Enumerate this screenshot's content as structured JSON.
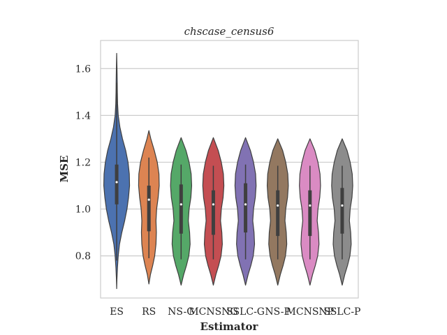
{
  "chart_data": {
    "type": "violin",
    "title": "chscase_census6",
    "xlabel": "Estimator",
    "ylabel": "MSE",
    "ylim": [
      0.62,
      1.72
    ],
    "yticks": [
      0.8,
      1.0,
      1.2,
      1.4,
      1.6
    ],
    "ytick_labels": [
      "0.8",
      "1.0",
      "1.2",
      "1.4",
      "1.6"
    ],
    "grid": true,
    "categories": [
      "ES",
      "RS",
      "NS-G",
      "MCNSNG",
      "SSLC-G",
      "NS-P",
      "MCNSNP",
      "SSLC-P"
    ],
    "series": [
      {
        "name": "ES",
        "color": "#4c72b0",
        "violin_range": [
          0.66,
          1.665
        ],
        "whisker": [
          0.78,
          1.54
        ],
        "q1": 1.02,
        "median": 1.115,
        "q3": 1.19,
        "profile": [
          [
            0.66,
            0.0
          ],
          [
            0.7,
            0.02
          ],
          [
            0.75,
            0.06
          ],
          [
            0.8,
            0.12
          ],
          [
            0.85,
            0.22
          ],
          [
            0.9,
            0.4
          ],
          [
            0.95,
            0.62
          ],
          [
            1.0,
            0.8
          ],
          [
            1.05,
            0.92
          ],
          [
            1.1,
            1.0
          ],
          [
            1.15,
            0.98
          ],
          [
            1.2,
            0.88
          ],
          [
            1.25,
            0.7
          ],
          [
            1.3,
            0.45
          ],
          [
            1.35,
            0.25
          ],
          [
            1.4,
            0.12
          ],
          [
            1.45,
            0.07
          ],
          [
            1.5,
            0.05
          ],
          [
            1.55,
            0.04
          ],
          [
            1.6,
            0.025
          ],
          [
            1.665,
            0.0
          ]
        ]
      },
      {
        "name": "RS",
        "color": "#dd8452",
        "violin_range": [
          0.68,
          1.335
        ],
        "whisker": [
          0.79,
          1.22
        ],
        "q1": 0.905,
        "median": 1.04,
        "q3": 1.1,
        "profile": [
          [
            0.68,
            0.0
          ],
          [
            0.72,
            0.12
          ],
          [
            0.76,
            0.3
          ],
          [
            0.8,
            0.45
          ],
          [
            0.85,
            0.55
          ],
          [
            0.9,
            0.58
          ],
          [
            0.95,
            0.55
          ],
          [
            1.0,
            0.6
          ],
          [
            1.05,
            0.72
          ],
          [
            1.1,
            0.8
          ],
          [
            1.15,
            0.78
          ],
          [
            1.2,
            0.65
          ],
          [
            1.25,
            0.42
          ],
          [
            1.3,
            0.15
          ],
          [
            1.335,
            0.0
          ]
        ]
      },
      {
        "name": "NS-G",
        "color": "#55a868",
        "violin_range": [
          0.675,
          1.305
        ],
        "whisker": [
          0.785,
          1.19
        ],
        "q1": 0.895,
        "median": 1.02,
        "q3": 1.105,
        "profile": [
          [
            0.675,
            0.0
          ],
          [
            0.72,
            0.2
          ],
          [
            0.76,
            0.42
          ],
          [
            0.8,
            0.6
          ],
          [
            0.85,
            0.7
          ],
          [
            0.9,
            0.66
          ],
          [
            0.95,
            0.56
          ],
          [
            1.0,
            0.62
          ],
          [
            1.05,
            0.76
          ],
          [
            1.1,
            0.82
          ],
          [
            1.15,
            0.78
          ],
          [
            1.2,
            0.62
          ],
          [
            1.25,
            0.38
          ],
          [
            1.305,
            0.0
          ]
        ]
      },
      {
        "name": "MCNSNG",
        "color": "#c44e52",
        "violin_range": [
          0.675,
          1.305
        ],
        "whisker": [
          0.785,
          1.185
        ],
        "q1": 0.89,
        "median": 1.02,
        "q3": 1.08,
        "profile": [
          [
            0.675,
            0.0
          ],
          [
            0.72,
            0.2
          ],
          [
            0.76,
            0.42
          ],
          [
            0.8,
            0.6
          ],
          [
            0.85,
            0.7
          ],
          [
            0.9,
            0.66
          ],
          [
            0.95,
            0.56
          ],
          [
            1.0,
            0.62
          ],
          [
            1.05,
            0.76
          ],
          [
            1.1,
            0.82
          ],
          [
            1.15,
            0.78
          ],
          [
            1.2,
            0.62
          ],
          [
            1.25,
            0.38
          ],
          [
            1.305,
            0.0
          ]
        ]
      },
      {
        "name": "SSLC-G",
        "color": "#8172b3",
        "violin_range": [
          0.675,
          1.305
        ],
        "whisker": [
          0.785,
          1.19
        ],
        "q1": 0.9,
        "median": 1.02,
        "q3": 1.11,
        "profile": [
          [
            0.675,
            0.0
          ],
          [
            0.72,
            0.2
          ],
          [
            0.76,
            0.42
          ],
          [
            0.8,
            0.6
          ],
          [
            0.85,
            0.7
          ],
          [
            0.9,
            0.66
          ],
          [
            0.95,
            0.56
          ],
          [
            1.0,
            0.62
          ],
          [
            1.05,
            0.76
          ],
          [
            1.1,
            0.82
          ],
          [
            1.15,
            0.78
          ],
          [
            1.2,
            0.62
          ],
          [
            1.25,
            0.38
          ],
          [
            1.305,
            0.0
          ]
        ]
      },
      {
        "name": "NS-P",
        "color": "#937860",
        "violin_range": [
          0.675,
          1.3
        ],
        "whisker": [
          0.785,
          1.185
        ],
        "q1": 0.885,
        "median": 1.015,
        "q3": 1.08,
        "profile": [
          [
            0.675,
            0.0
          ],
          [
            0.72,
            0.2
          ],
          [
            0.76,
            0.42
          ],
          [
            0.8,
            0.6
          ],
          [
            0.85,
            0.7
          ],
          [
            0.9,
            0.66
          ],
          [
            0.95,
            0.56
          ],
          [
            1.0,
            0.62
          ],
          [
            1.05,
            0.76
          ],
          [
            1.1,
            0.82
          ],
          [
            1.15,
            0.78
          ],
          [
            1.2,
            0.62
          ],
          [
            1.25,
            0.38
          ],
          [
            1.3,
            0.0
          ]
        ]
      },
      {
        "name": "MCNSNP",
        "color": "#da8bc3",
        "violin_range": [
          0.675,
          1.3
        ],
        "whisker": [
          0.785,
          1.185
        ],
        "q1": 0.885,
        "median": 1.015,
        "q3": 1.08,
        "profile": [
          [
            0.675,
            0.0
          ],
          [
            0.72,
            0.2
          ],
          [
            0.76,
            0.42
          ],
          [
            0.8,
            0.6
          ],
          [
            0.85,
            0.7
          ],
          [
            0.9,
            0.66
          ],
          [
            0.95,
            0.56
          ],
          [
            1.0,
            0.62
          ],
          [
            1.05,
            0.76
          ],
          [
            1.1,
            0.82
          ],
          [
            1.15,
            0.78
          ],
          [
            1.2,
            0.62
          ],
          [
            1.25,
            0.38
          ],
          [
            1.3,
            0.0
          ]
        ]
      },
      {
        "name": "SSLC-P",
        "color": "#8c8c8c",
        "violin_range": [
          0.675,
          1.3
        ],
        "whisker": [
          0.785,
          1.185
        ],
        "q1": 0.895,
        "median": 1.015,
        "q3": 1.09,
        "profile": [
          [
            0.675,
            0.0
          ],
          [
            0.72,
            0.2
          ],
          [
            0.76,
            0.42
          ],
          [
            0.8,
            0.6
          ],
          [
            0.85,
            0.7
          ],
          [
            0.9,
            0.66
          ],
          [
            0.95,
            0.56
          ],
          [
            1.0,
            0.62
          ],
          [
            1.05,
            0.76
          ],
          [
            1.1,
            0.82
          ],
          [
            1.15,
            0.78
          ],
          [
            1.2,
            0.62
          ],
          [
            1.25,
            0.38
          ],
          [
            1.3,
            0.0
          ]
        ]
      }
    ]
  }
}
